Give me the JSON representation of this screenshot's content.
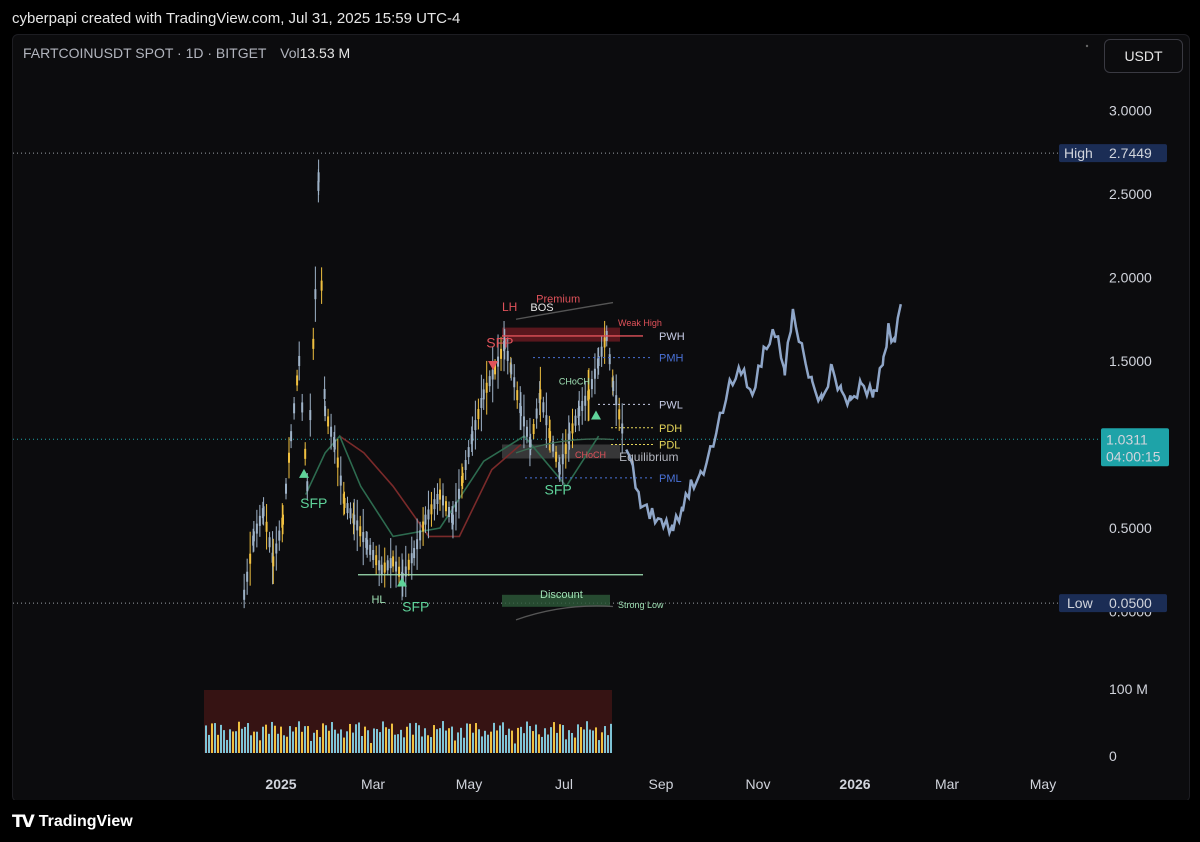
{
  "header": {
    "caption": "cyberpapi created with TradingView.com, Jul 31, 2025 15:59 UTC-4"
  },
  "symbol": {
    "name": "FARTCOINUSDT SPOT · 1D · BITGET",
    "vol_label": "Vol",
    "vol_value": "13.53 M"
  },
  "currency_button": "USDT",
  "footer": {
    "logo_mark": "TV",
    "brand": "TradingView"
  },
  "colors": {
    "background": "#0c0c0e",
    "candle": "#9fb3c8",
    "candle_up_highlight": "#f0c040",
    "projection": "#8fa6c8",
    "high_low_tag": "#1b2d55",
    "last_price_tag": "#1ea3a8",
    "bearish": "#e0525a",
    "bullish": "#5fd39a",
    "pm_levels": "#4a72d8",
    "pd_levels": "#e6d65a"
  },
  "chart_data": {
    "type": "candlestick",
    "price_axis": {
      "ticks": [
        "3.0000",
        "2.5000",
        "2.0000",
        "1.5000",
        "1.0000",
        "0.5000",
        "0.0000"
      ],
      "volume_ticks": [
        "100 M",
        "0"
      ]
    },
    "time_axis": [
      "2025",
      "Mar",
      "May",
      "Jul",
      "Sep",
      "Nov",
      "2026",
      "Mar",
      "May"
    ],
    "high_tag": {
      "label": "High",
      "value": "2.7449"
    },
    "low_tag": {
      "label": "Low",
      "value": "0.0500"
    },
    "last_price": {
      "value": "1.0311",
      "countdown": "04:00:15"
    },
    "price_path": [
      [
        "2024-12-08",
        0.1
      ],
      [
        "2024-12-14",
        0.45
      ],
      [
        "2024-12-20",
        0.6
      ],
      [
        "2024-12-26",
        0.3
      ],
      [
        "2025-01-01",
        0.55
      ],
      [
        "2025-01-06",
        1.05
      ],
      [
        "2025-01-11",
        1.5
      ],
      [
        "2025-01-16",
        0.75
      ],
      [
        "2025-01-21",
        1.9
      ],
      [
        "2025-01-23",
        2.6
      ],
      [
        "2025-01-27",
        1.2
      ],
      [
        "2025-02-02",
        1.0
      ],
      [
        "2025-02-08",
        0.65
      ],
      [
        "2025-02-14",
        0.55
      ],
      [
        "2025-02-22",
        0.4
      ],
      [
        "2025-03-03",
        0.25
      ],
      [
        "2025-03-10",
        0.3
      ],
      [
        "2025-03-16",
        0.2
      ],
      [
        "2025-03-23",
        0.35
      ],
      [
        "2025-03-30",
        0.55
      ],
      [
        "2025-04-08",
        0.7
      ],
      [
        "2025-04-16",
        0.55
      ],
      [
        "2025-04-22",
        0.8
      ],
      [
        "2025-04-28",
        1.05
      ],
      [
        "2025-05-05",
        1.3
      ],
      [
        "2025-05-12",
        1.45
      ],
      [
        "2025-05-18",
        1.6
      ],
      [
        "2025-05-22",
        1.45
      ],
      [
        "2025-05-28",
        1.2
      ],
      [
        "2025-06-03",
        1.0
      ],
      [
        "2025-06-09",
        1.3
      ],
      [
        "2025-06-15",
        1.05
      ],
      [
        "2025-06-21",
        0.85
      ],
      [
        "2025-06-27",
        1.05
      ],
      [
        "2025-07-03",
        1.2
      ],
      [
        "2025-07-09",
        1.3
      ],
      [
        "2025-07-15",
        1.5
      ],
      [
        "2025-07-20",
        1.65
      ],
      [
        "2025-07-24",
        1.35
      ],
      [
        "2025-07-31",
        1.03
      ]
    ],
    "projection_path": [
      [
        "2025-08-01",
        1.0
      ],
      [
        "2025-08-05",
        0.85
      ],
      [
        "2025-08-10",
        0.65
      ],
      [
        "2025-08-17",
        0.58
      ],
      [
        "2025-08-24",
        0.52
      ],
      [
        "2025-08-30",
        0.5
      ],
      [
        "2025-09-05",
        0.62
      ],
      [
        "2025-09-10",
        0.75
      ],
      [
        "2025-09-16",
        0.8
      ],
      [
        "2025-09-22",
        0.95
      ],
      [
        "2025-09-28",
        1.15
      ],
      [
        "2025-10-04",
        1.35
      ],
      [
        "2025-10-11",
        1.45
      ],
      [
        "2025-10-18",
        1.3
      ],
      [
        "2025-10-25",
        1.55
      ],
      [
        "2025-11-01",
        1.68
      ],
      [
        "2025-11-07",
        1.45
      ],
      [
        "2025-11-12",
        1.78
      ],
      [
        "2025-11-18",
        1.55
      ],
      [
        "2025-11-24",
        1.35
      ],
      [
        "2025-11-30",
        1.25
      ],
      [
        "2025-12-06",
        1.45
      ],
      [
        "2025-12-12",
        1.3
      ],
      [
        "2025-12-18",
        1.25
      ],
      [
        "2025-12-24",
        1.35
      ],
      [
        "2026-01-01",
        1.3
      ],
      [
        "2026-01-07",
        1.5
      ],
      [
        "2026-01-10",
        1.7
      ],
      [
        "2026-01-14",
        1.6
      ],
      [
        "2026-01-18",
        1.9
      ]
    ],
    "bull_ma": [
      [
        "2025-01-15",
        0.7
      ],
      [
        "2025-01-27",
        0.95
      ],
      [
        "2025-02-05",
        1.05
      ],
      [
        "2025-02-18",
        0.75
      ],
      [
        "2025-03-10",
        0.45
      ],
      [
        "2025-04-08",
        0.5
      ],
      [
        "2025-05-05",
        0.9
      ],
      [
        "2025-05-30",
        1.05
      ],
      [
        "2025-06-25",
        0.75
      ],
      [
        "2025-07-15",
        1.05
      ]
    ],
    "bear_ma": [
      [
        "2025-02-05",
        1.05
      ],
      [
        "2025-02-20",
        0.95
      ],
      [
        "2025-03-10",
        0.75
      ],
      [
        "2025-04-01",
        0.45
      ],
      [
        "2025-04-20",
        0.45
      ],
      [
        "2025-05-10",
        0.85
      ],
      [
        "2025-05-28",
        1.0
      ]
    ],
    "levels": [
      {
        "name": "Weak High",
        "value": 1.68
      },
      {
        "name": "PWH",
        "value": 1.65
      },
      {
        "name": "PMH",
        "value": 1.52
      },
      {
        "name": "PWL",
        "value": 1.24
      },
      {
        "name": "PDH",
        "value": 1.1
      },
      {
        "name": "PDL",
        "value": 1.0
      },
      {
        "name": "PML",
        "value": 0.8
      },
      {
        "name": "Strong Low",
        "value": 0.2
      }
    ],
    "annotations": [
      {
        "text": "SFP",
        "date": "2025-01-20",
        "price": 0.62
      },
      {
        "text": "SFP",
        "date": "2025-03-24",
        "price": 0.0
      },
      {
        "text": "HL",
        "date": "2025-03-01",
        "price": 0.05
      },
      {
        "text": "LH",
        "date": "2025-05-21",
        "price": 1.8
      },
      {
        "text": "SFP",
        "date": "2025-05-15",
        "price": 1.58
      },
      {
        "text": "BOS",
        "date": "2025-06-10",
        "price": 1.8
      },
      {
        "text": "Premium",
        "date": "2025-06-20",
        "price": 1.85
      },
      {
        "text": "CHoCH",
        "date": "2025-06-30",
        "price": 1.36
      },
      {
        "text": "CHoCH",
        "date": "2025-07-10",
        "price": 0.92
      },
      {
        "text": "Equilibrium",
        "date": "2025-08-15",
        "price": 0.9
      },
      {
        "text": "SFP",
        "date": "2025-06-20",
        "price": 0.7
      },
      {
        "text": "Discount",
        "date": "2025-06-22",
        "price": 0.08
      }
    ]
  }
}
